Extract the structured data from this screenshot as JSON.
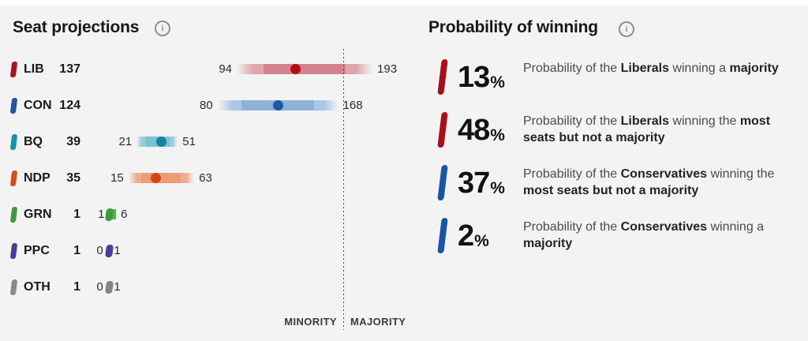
{
  "page": {
    "background": "#f4f3f4",
    "top_strip_color": "#ffffff"
  },
  "icons": {
    "info_glyph": "i"
  },
  "seat_projections": {
    "title": "Seat projections",
    "axis": {
      "minority_label": "MINORITY",
      "majority_label": "MAJORITY",
      "majority_threshold_seats": 170
    },
    "parties": [
      {
        "code": "LIB",
        "seats": 137,
        "low": 94,
        "high": 193,
        "swatch_color": "#a4151d",
        "dot_color": "#b00f16",
        "band": "#dfa6aa",
        "band_inner": "#d3848b"
      },
      {
        "code": "CON",
        "seats": 124,
        "low": 80,
        "high": 168,
        "swatch_color": "#2154a5",
        "dot_color": "#1d56a6",
        "band": "#adc6e5",
        "band_inner": "#8eb2da"
      },
      {
        "code": "BQ",
        "seats": 39,
        "low": 21,
        "high": 51,
        "swatch_color": "#1692b4",
        "dot_color": "#1480a2",
        "band": "#95ced9",
        "band_inner": "#7ac3d2"
      },
      {
        "code": "NDP",
        "seats": 35,
        "low": 15,
        "high": 63,
        "swatch_color": "#cf4f1f",
        "dot_color": "#d8440f",
        "band": "#f0ac8d",
        "band_inner": "#ec9d77"
      },
      {
        "code": "GRN",
        "seats": 1,
        "low": 1,
        "high": 6,
        "swatch_color": "#3f9a3e",
        "dot_color": "#3f9a3e",
        "band": "#5fae5e",
        "band_inner": "#5fae5e"
      },
      {
        "code": "PPC",
        "seats": 1,
        "low": 0,
        "high": 1,
        "swatch_color": "#4a3c99",
        "dot_color": "#4a3c99",
        "band": "#8a7fc4",
        "band_inner": "#8a7fc4"
      },
      {
        "code": "OTH",
        "seats": 1,
        "low": 0,
        "high": 1,
        "swatch_color": "#8a8a8a",
        "dot_color": "#848484",
        "band": "#ababab",
        "band_inner": "#ababab"
      }
    ]
  },
  "probability": {
    "title": "Probability of winning",
    "items": [
      {
        "value": 13,
        "unit": "%",
        "color": "#a90f1b",
        "parts": [
          {
            "t": "Probability of the ",
            "b": false
          },
          {
            "t": "Liberals",
            "b": true
          },
          {
            "t": " winning a ",
            "b": false
          },
          {
            "t": "majority",
            "b": true
          }
        ]
      },
      {
        "value": 48,
        "unit": "%",
        "color": "#a90f1b",
        "parts": [
          {
            "t": "Probability of the ",
            "b": false
          },
          {
            "t": "Liberals",
            "b": true
          },
          {
            "t": " winning the ",
            "b": false
          },
          {
            "t": "most seats but not a majority",
            "b": true
          }
        ]
      },
      {
        "value": 37,
        "unit": "%",
        "color": "#1b53a6",
        "parts": [
          {
            "t": "Probability of the ",
            "b": false
          },
          {
            "t": "Conservatives",
            "b": true
          },
          {
            "t": " winning the ",
            "b": false
          },
          {
            "t": "most seats but not a majority",
            "b": true
          }
        ]
      },
      {
        "value": 2,
        "unit": "%",
        "color": "#1b53a6",
        "parts": [
          {
            "t": "Probability of the ",
            "b": false
          },
          {
            "t": "Conservatives",
            "b": true
          },
          {
            "t": " winning a ",
            "b": false
          },
          {
            "t": "majority",
            "b": true
          }
        ]
      }
    ]
  },
  "chart_data": [
    {
      "type": "bar",
      "orientation": "horizontal-range-with-dot",
      "title": "Seat projections",
      "categories": [
        "LIB",
        "CON",
        "BQ",
        "NDP",
        "GRN",
        "PPC",
        "OTH"
      ],
      "series": [
        {
          "name": "projected_seats",
          "values": [
            137,
            124,
            39,
            35,
            1,
            1,
            1
          ]
        },
        {
          "name": "range_low",
          "values": [
            94,
            80,
            21,
            15,
            1,
            0,
            0
          ]
        },
        {
          "name": "range_high",
          "values": [
            193,
            168,
            51,
            63,
            6,
            1,
            1
          ]
        }
      ],
      "annotations": {
        "majority_threshold": 170,
        "threshold_labels": [
          "MINORITY",
          "MAJORITY"
        ]
      },
      "xlim": [
        0,
        200
      ],
      "grid": false,
      "legend": false
    },
    {
      "type": "bar",
      "title": "Probability of winning",
      "categories": [
        "Liberals majority",
        "Liberals most seats but not a majority",
        "Conservatives most seats but not a majority",
        "Conservatives majority"
      ],
      "values": [
        13,
        48,
        37,
        2
      ],
      "unit": "%"
    }
  ]
}
